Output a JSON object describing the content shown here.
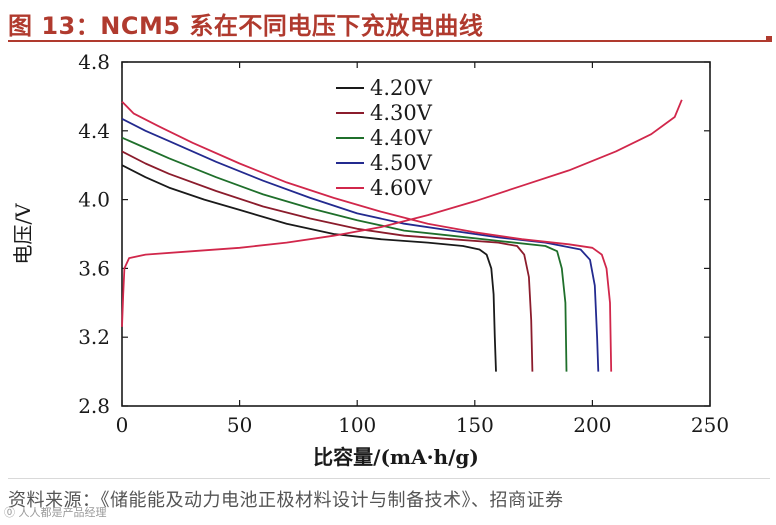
{
  "header": {
    "title": "图 13：NCM5 系在不同电压下充放电曲线"
  },
  "chart_data": {
    "type": "line",
    "title": "",
    "xlabel": "比容量/(mA·h/g)",
    "ylabel": "电压/V",
    "xlim": [
      0,
      250
    ],
    "ylim": [
      2.8,
      4.8
    ],
    "xticks": [
      0,
      50,
      100,
      150,
      200,
      250
    ],
    "yticks": [
      2.8,
      3.2,
      3.6,
      4.0,
      4.4,
      4.8
    ],
    "legend_position": "top-center",
    "series": [
      {
        "name": "4.20V",
        "color": "#1a1a1a",
        "kind": "discharge",
        "points": [
          [
            0,
            4.2
          ],
          [
            10,
            4.13
          ],
          [
            20,
            4.07
          ],
          [
            35,
            4.0
          ],
          [
            50,
            3.94
          ],
          [
            70,
            3.86
          ],
          [
            90,
            3.8
          ],
          [
            110,
            3.77
          ],
          [
            130,
            3.75
          ],
          [
            145,
            3.73
          ],
          [
            152,
            3.71
          ],
          [
            155,
            3.68
          ],
          [
            157,
            3.6
          ],
          [
            158,
            3.45
          ],
          [
            158.5,
            3.2
          ],
          [
            159,
            3.0
          ]
        ]
      },
      {
        "name": "4.30V",
        "color": "#8b1c2c",
        "kind": "discharge",
        "points": [
          [
            0,
            4.28
          ],
          [
            10,
            4.21
          ],
          [
            20,
            4.15
          ],
          [
            40,
            4.05
          ],
          [
            60,
            3.96
          ],
          [
            80,
            3.89
          ],
          [
            100,
            3.83
          ],
          [
            120,
            3.79
          ],
          [
            140,
            3.77
          ],
          [
            160,
            3.75
          ],
          [
            168,
            3.73
          ],
          [
            171,
            3.68
          ],
          [
            173,
            3.55
          ],
          [
            174,
            3.3
          ],
          [
            174.5,
            3.0
          ]
        ]
      },
      {
        "name": "4.40V",
        "color": "#1f6f2b",
        "kind": "discharge",
        "points": [
          [
            0,
            4.36
          ],
          [
            10,
            4.3
          ],
          [
            20,
            4.24
          ],
          [
            40,
            4.13
          ],
          [
            60,
            4.03
          ],
          [
            80,
            3.95
          ],
          [
            100,
            3.88
          ],
          [
            120,
            3.82
          ],
          [
            140,
            3.79
          ],
          [
            160,
            3.76
          ],
          [
            180,
            3.73
          ],
          [
            185,
            3.7
          ],
          [
            187,
            3.6
          ],
          [
            188.5,
            3.4
          ],
          [
            189,
            3.0
          ]
        ]
      },
      {
        "name": "4.50V",
        "color": "#232a8f",
        "kind": "discharge",
        "points": [
          [
            0,
            4.47
          ],
          [
            10,
            4.4
          ],
          [
            20,
            4.34
          ],
          [
            40,
            4.22
          ],
          [
            60,
            4.11
          ],
          [
            80,
            4.01
          ],
          [
            100,
            3.92
          ],
          [
            120,
            3.86
          ],
          [
            140,
            3.82
          ],
          [
            160,
            3.78
          ],
          [
            180,
            3.75
          ],
          [
            195,
            3.71
          ],
          [
            199,
            3.65
          ],
          [
            201,
            3.5
          ],
          [
            202,
            3.2
          ],
          [
            202.5,
            3.0
          ]
        ]
      },
      {
        "name": "4.60V",
        "color": "#d1274b",
        "kind": "discharge",
        "points": [
          [
            0,
            4.57
          ],
          [
            5,
            4.5
          ],
          [
            15,
            4.43
          ],
          [
            30,
            4.33
          ],
          [
            50,
            4.21
          ],
          [
            70,
            4.1
          ],
          [
            90,
            4.01
          ],
          [
            110,
            3.93
          ],
          [
            130,
            3.86
          ],
          [
            150,
            3.81
          ],
          [
            170,
            3.77
          ],
          [
            190,
            3.74
          ],
          [
            200,
            3.72
          ],
          [
            204,
            3.68
          ],
          [
            206,
            3.6
          ],
          [
            207.5,
            3.4
          ],
          [
            208,
            3.0
          ]
        ]
      },
      {
        "name": "charge",
        "color": "#d1274b",
        "kind": "charge",
        "points": [
          [
            0,
            3.26
          ],
          [
            0.5,
            3.45
          ],
          [
            1,
            3.6
          ],
          [
            3,
            3.66
          ],
          [
            10,
            3.68
          ],
          [
            30,
            3.7
          ],
          [
            50,
            3.72
          ],
          [
            70,
            3.75
          ],
          [
            90,
            3.79
          ],
          [
            110,
            3.84
          ],
          [
            130,
            3.91
          ],
          [
            150,
            3.99
          ],
          [
            170,
            4.08
          ],
          [
            190,
            4.17
          ],
          [
            210,
            4.28
          ],
          [
            225,
            4.38
          ],
          [
            235,
            4.48
          ],
          [
            238,
            4.58
          ]
        ]
      }
    ]
  },
  "source": {
    "text": "资料来源：《储能能及动力电池正极材料设计与制备技术》、招商证券"
  },
  "watermark": {
    "text": "⓪ 人人都是产品经理"
  }
}
